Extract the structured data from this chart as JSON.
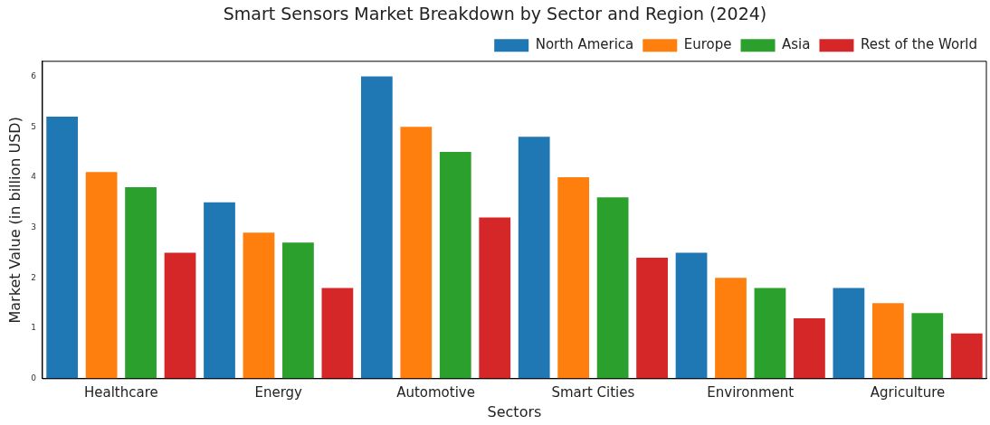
{
  "chart_data": {
    "type": "bar",
    "title": "Smart Sensors Market Breakdown by Sector and Region (2024)",
    "xlabel": "Sectors",
    "ylabel": "Market Value (in billion USD)",
    "categories": [
      "Healthcare",
      "Energy",
      "Automotive",
      "Smart Cities",
      "Environment",
      "Agriculture"
    ],
    "series": [
      {
        "name": "North America",
        "color": "#1f77b4",
        "values": [
          5.2,
          3.5,
          6.0,
          4.8,
          2.5,
          1.8
        ]
      },
      {
        "name": "Europe",
        "color": "#ff7f0e",
        "values": [
          4.1,
          2.9,
          5.0,
          4.0,
          2.0,
          1.5
        ]
      },
      {
        "name": "Asia",
        "color": "#2ca02c",
        "values": [
          3.8,
          2.7,
          4.5,
          3.6,
          1.8,
          1.3
        ]
      },
      {
        "name": "Rest of the World",
        "color": "#d62728",
        "values": [
          2.5,
          1.8,
          3.2,
          2.4,
          1.2,
          0.9
        ]
      }
    ],
    "ylim": [
      0,
      6.3
    ],
    "yticks": [
      0,
      1,
      2,
      3,
      4,
      5,
      6
    ],
    "grid": false,
    "legend": "top right"
  }
}
